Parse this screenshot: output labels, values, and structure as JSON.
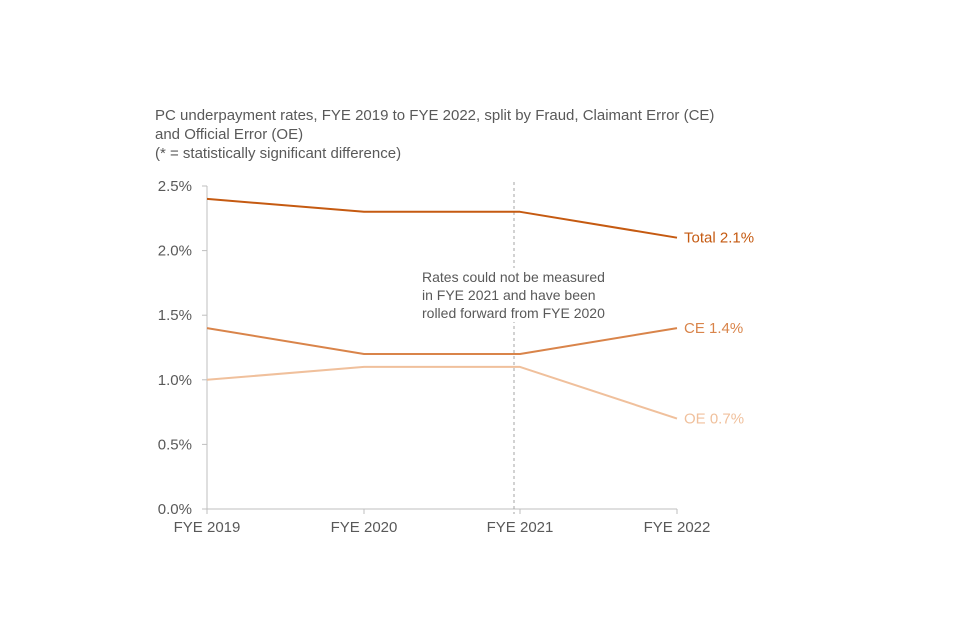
{
  "title_lines": [
    "PC underpayment rates, FYE 2019 to FYE 2022, split by Fraud, Claimant Error (CE)",
    "and Official Error (OE)",
    "(* = statistically significant difference)"
  ],
  "annotation_lines": [
    "Rates could not be measured",
    "in FYE 2021 and have been",
    "rolled forward from FYE 2020"
  ],
  "chart_data": {
    "type": "line",
    "title": "PC underpayment rates, FYE 2019 to FYE 2022, split by Fraud, Claimant Error (CE) and Official Error (OE) (* = statistically significant difference)",
    "categories": [
      "FYE 2019",
      "FYE 2020",
      "FYE 2021",
      "FYE 2022"
    ],
    "ylim": [
      0,
      2.5
    ],
    "yticks": [
      0,
      0.5,
      1.0,
      1.5,
      2.0,
      2.5
    ],
    "ytick_labels": [
      "0.0%",
      "0.5%",
      "1.0%",
      "1.5%",
      "2.0%",
      "2.5%"
    ],
    "xlabel": "",
    "ylabel": "",
    "grid": false,
    "series": [
      {
        "name": "Total",
        "end_label": "Total 2.1%",
        "values": [
          2.4,
          2.3,
          2.3,
          2.1
        ],
        "color": "#C55A11"
      },
      {
        "name": "CE",
        "end_label": "CE 1.4%",
        "values": [
          1.4,
          1.2,
          1.2,
          1.4
        ],
        "color": "#D9844A"
      },
      {
        "name": "OE",
        "end_label": "OE 0.7%",
        "values": [
          1.0,
          1.1,
          1.1,
          0.7
        ],
        "color": "#F0C09C"
      }
    ],
    "reference_line": {
      "category": "FYE 2021",
      "style": "dashed",
      "color": "#A6A6A6"
    }
  }
}
